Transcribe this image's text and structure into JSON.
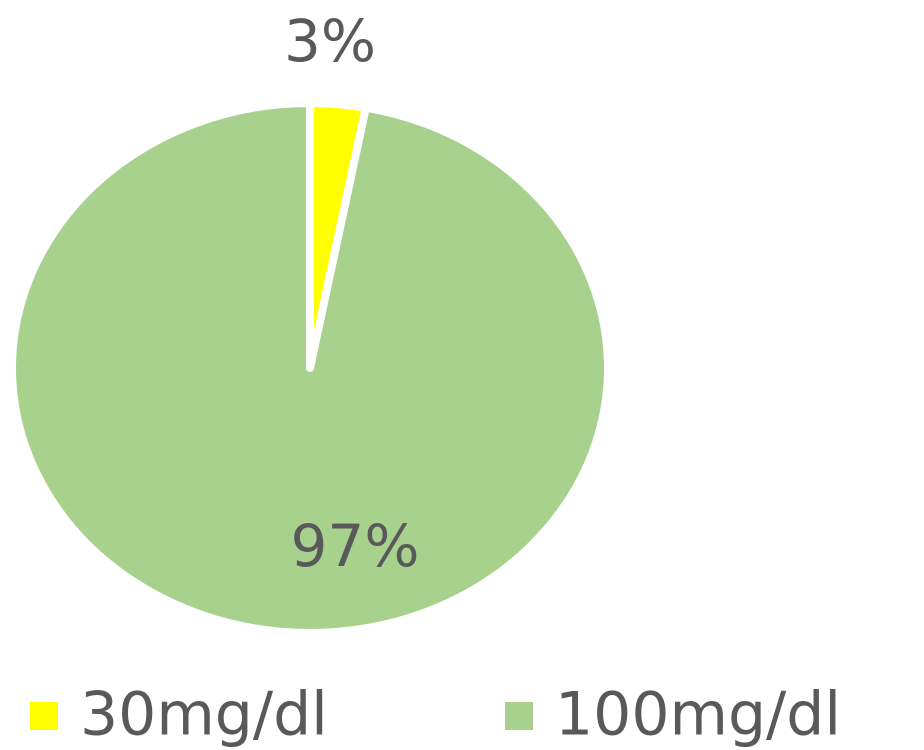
{
  "chart_data": {
    "type": "pie",
    "categories": [
      "30mg/dl",
      "100mg/dl"
    ],
    "values": [
      3,
      97
    ],
    "value_labels": [
      "3%",
      "97%"
    ],
    "colors": [
      "#ffff00",
      "#a9d18e"
    ],
    "legend": "bottom"
  }
}
